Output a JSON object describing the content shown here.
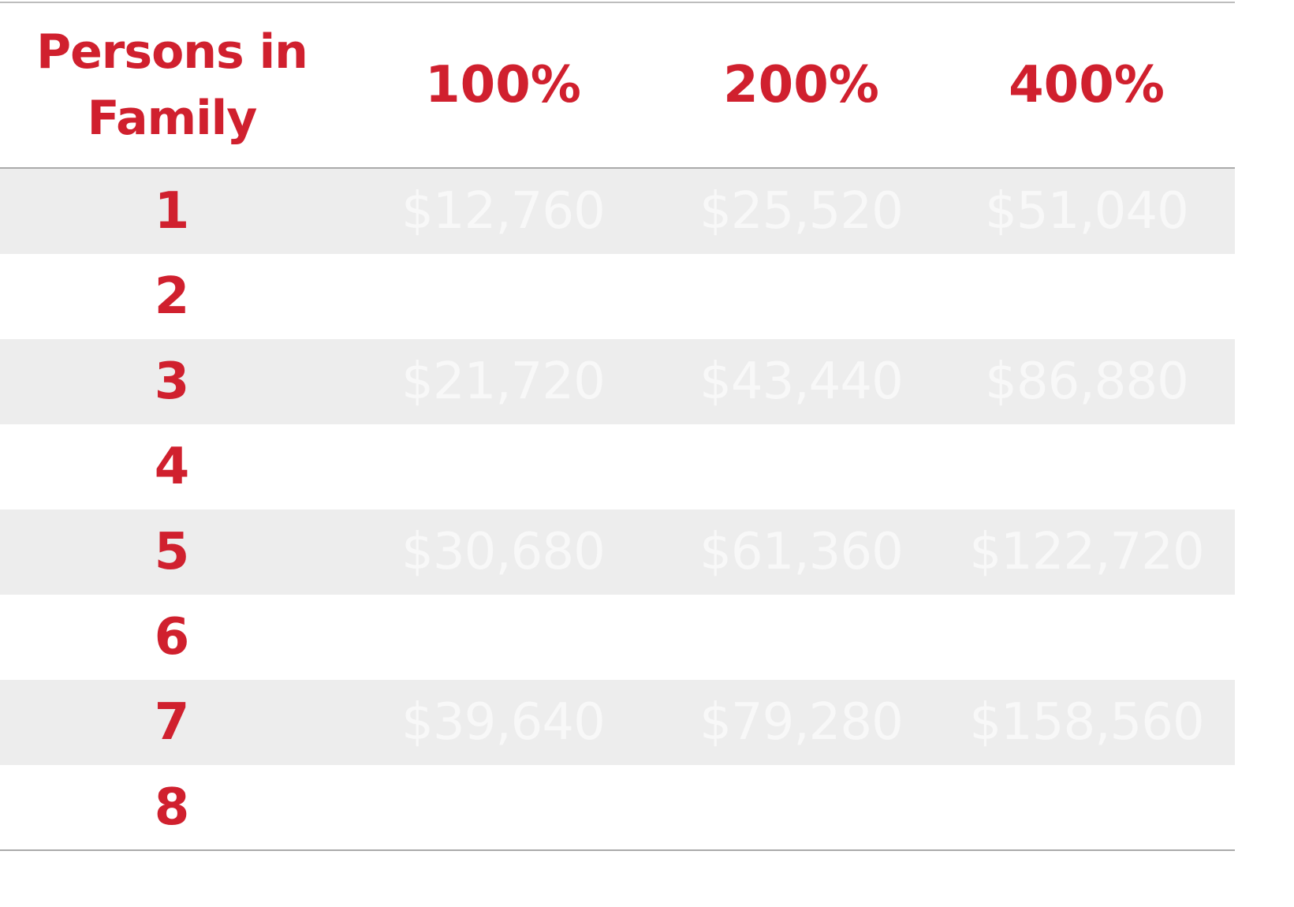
{
  "table": {
    "headers": {
      "persons_line1": "Persons in",
      "persons_line2": "Family",
      "col_100": "100%",
      "col_200": "200%",
      "col_400": "400%"
    },
    "rows": [
      {
        "persons": "1",
        "p100": "$12,760",
        "p200": "$25,520",
        "p400": "$51,040"
      },
      {
        "persons": "2",
        "p100": "",
        "p200": "",
        "p400": ""
      },
      {
        "persons": "3",
        "p100": "$21,720",
        "p200": "$43,440",
        "p400": "$86,880"
      },
      {
        "persons": "4",
        "p100": "",
        "p200": "",
        "p400": ""
      },
      {
        "persons": "5",
        "p100": "$30,680",
        "p200": "$61,360",
        "p400": "$122,720"
      },
      {
        "persons": "6",
        "p100": "",
        "p200": "",
        "p400": ""
      },
      {
        "persons": "7",
        "p100": "$39,640",
        "p200": "$79,280",
        "p400": "$158,560"
      },
      {
        "persons": "8",
        "p100": "",
        "p200": "",
        "p400": ""
      }
    ]
  },
  "colors": {
    "header_text": "#d0202e",
    "shaded_row": "#ededed",
    "value_text": "#f8f8f8"
  }
}
